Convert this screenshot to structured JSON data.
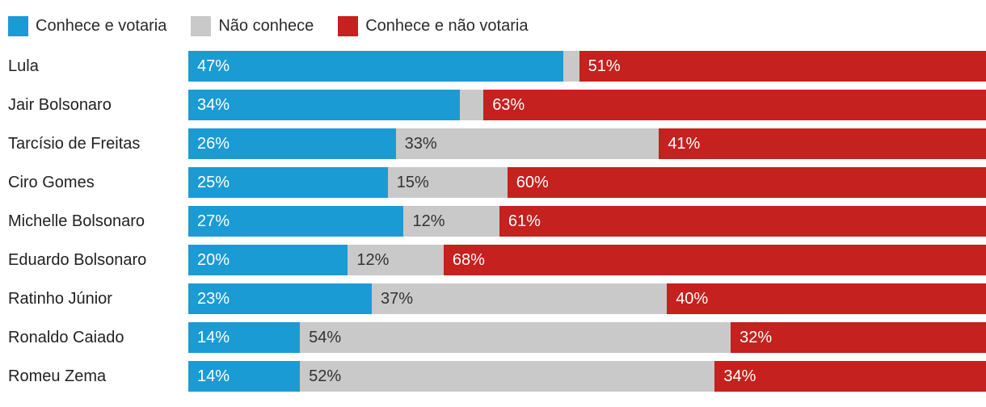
{
  "legend": {
    "items": [
      {
        "label": "Conhece e votaria",
        "color": "#1B9BD3"
      },
      {
        "label": "Não conhece",
        "color": "#C9C9C9"
      },
      {
        "label": "Conhece e não votaria",
        "color": "#C4211F"
      }
    ]
  },
  "chart_data": {
    "type": "bar",
    "orientation": "horizontal",
    "stacked": true,
    "unit": "%",
    "xlim": [
      0,
      100
    ],
    "legend_position": "top",
    "grid": false,
    "categories": [
      "Lula",
      "Jair Bolsonaro",
      "Tarcísio de Freitas",
      "Ciro Gomes",
      "Michelle Bolsonaro",
      "Eduardo Bolsonaro",
      "Ratinho Júnior",
      "Ronaldo Caiado",
      "Romeu Zema"
    ],
    "series": [
      {
        "name": "Conhece e votaria",
        "color": "#1B9BD3",
        "label_color": "#ffffff",
        "values": [
          47,
          34,
          26,
          25,
          27,
          20,
          23,
          14,
          14
        ],
        "labels": [
          "47%",
          "34%",
          "26%",
          "25%",
          "27%",
          "20%",
          "23%",
          "14%",
          "14%"
        ]
      },
      {
        "name": "Não conhece",
        "color": "#C9C9C9",
        "label_color": "#333333",
        "values": [
          2,
          3,
          33,
          15,
          12,
          12,
          37,
          54,
          52
        ],
        "labels": [
          "",
          "",
          "33%",
          "15%",
          "12%",
          "12%",
          "37%",
          "54%",
          "52%"
        ]
      },
      {
        "name": "Conhece e não votaria",
        "color": "#C4211F",
        "label_color": "#ffffff",
        "values": [
          51,
          63,
          41,
          60,
          61,
          68,
          40,
          32,
          34
        ],
        "labels": [
          "51%",
          "63%",
          "41%",
          "60%",
          "61%",
          "68%",
          "40%",
          "32%",
          "34%"
        ]
      }
    ]
  }
}
